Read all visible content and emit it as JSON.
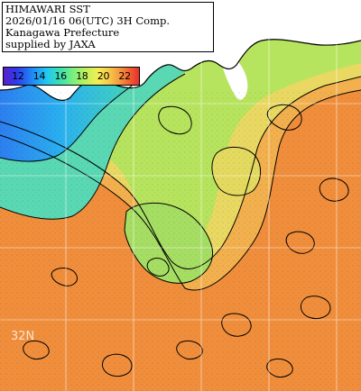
{
  "title_box": {
    "lines": [
      "HIMAWARI SST",
      "2026/01/16 06(UTC) 3H Comp.",
      "Kanagawa Prefecture",
      "supplied by JAXA"
    ]
  },
  "colorbar": {
    "labels": [
      "12",
      "14",
      "16",
      "18",
      "20",
      "22"
    ]
  },
  "grid": {
    "lat_label": "32N"
  },
  "colors": {
    "land": "#ffffff",
    "cold": "#2a6cf0",
    "cool": "#38d2c8",
    "mid": "#9ee05a",
    "warm": "#f0d060",
    "hot": "#f08a3a",
    "contour": "#000000",
    "grid": "#ffffff"
  }
}
